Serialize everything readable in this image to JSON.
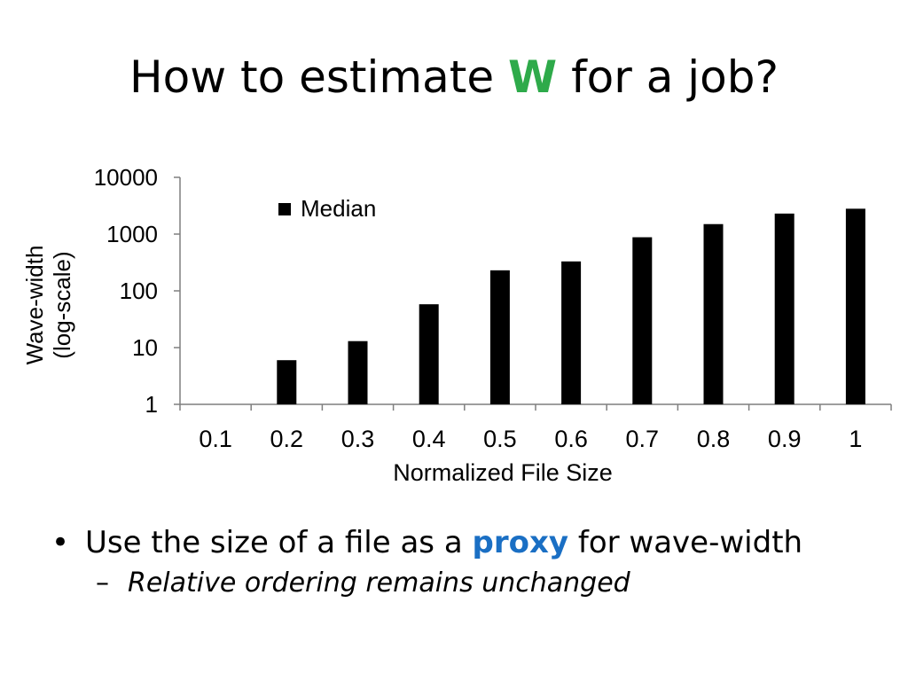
{
  "slide": {
    "title_before": "How to estimate",
    "title_highlight": "W",
    "title_after": "for a job?",
    "title_highlight_color": "#2eaa4a"
  },
  "bullets": {
    "main": {
      "marker": "•",
      "text_before": "Use the size of a file as a",
      "highlight": "proxy",
      "text_after": "for wave-width",
      "highlight_color": "#1a6fc4"
    },
    "sub": {
      "marker": "–",
      "text": "Relative ordering remains unchanged"
    }
  },
  "chart_data": {
    "type": "bar",
    "title": "",
    "xlabel": "Normalized File Size",
    "ylabel": "Wave-width",
    "ylabel_sub": "(log-scale)",
    "yscale": "log",
    "ylim": [
      1,
      10000
    ],
    "yticks": [
      {
        "value": 1,
        "label": "1"
      },
      {
        "value": 10,
        "label": "10"
      },
      {
        "value": 100,
        "label": "100"
      },
      {
        "value": 1000,
        "label": "1000"
      },
      {
        "value": 10000,
        "label": "10000"
      }
    ],
    "categories": [
      "0.1",
      "0.2",
      "0.3",
      "0.4",
      "0.5",
      "0.6",
      "0.7",
      "0.8",
      "0.9",
      "1"
    ],
    "series": [
      {
        "name": "Median",
        "color": "#000000",
        "values": [
          1,
          6,
          13,
          58,
          230,
          330,
          880,
          1500,
          2300,
          2800
        ]
      }
    ],
    "legend_position": "top-left",
    "grid": false
  }
}
